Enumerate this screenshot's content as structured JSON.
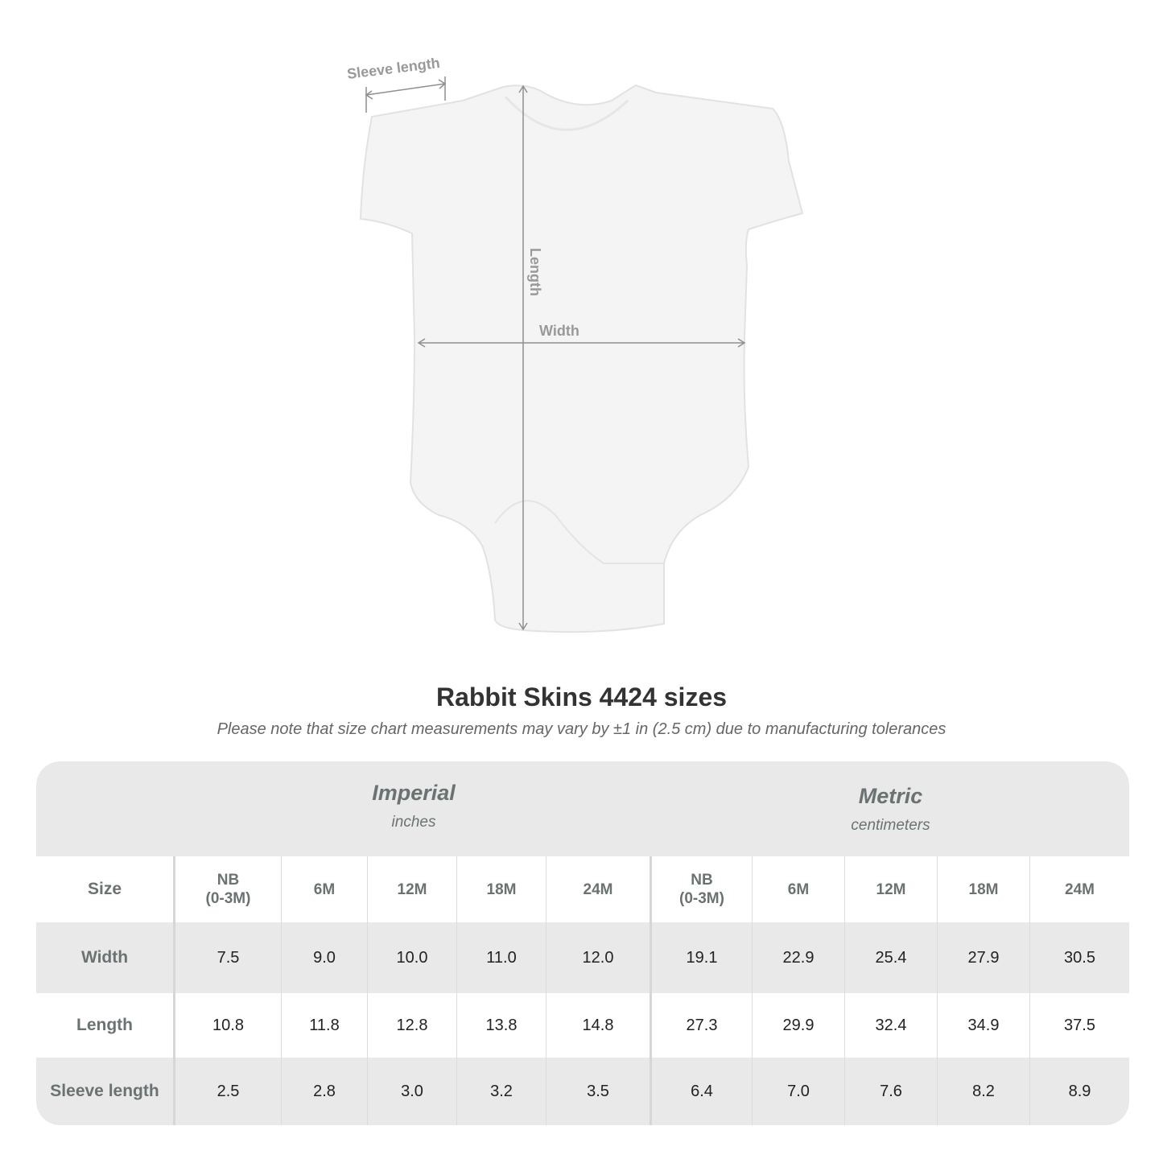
{
  "diagram": {
    "labels": {
      "sleeve": "Sleeve length",
      "length": "Length",
      "width": "Width"
    }
  },
  "title": "Rabbit Skins 4424 sizes",
  "subtitle": "Please note that size chart measurements may vary by ±1 in (2.5 cm) due to manufacturing tolerances",
  "table": {
    "imperial": {
      "title": "Imperial",
      "unit": "inches"
    },
    "metric": {
      "title": "Metric",
      "unit": "centimeters"
    },
    "size_label": "Size",
    "sizes_imperial": [
      "NB\n(0-3M)",
      "6M",
      "12M",
      "18M",
      "24M"
    ],
    "sizes_metric": [
      "NB\n(0-3M)",
      "6M",
      "12M",
      "18M",
      "24M"
    ],
    "rows": [
      {
        "label": "Width",
        "imperial": [
          "7.5",
          "9.0",
          "10.0",
          "11.0",
          "12.0"
        ],
        "metric": [
          "19.1",
          "22.9",
          "25.4",
          "27.9",
          "30.5"
        ]
      },
      {
        "label": "Length",
        "imperial": [
          "10.8",
          "11.8",
          "12.8",
          "13.8",
          "14.8"
        ],
        "metric": [
          "27.3",
          "29.9",
          "32.4",
          "34.9",
          "37.5"
        ]
      },
      {
        "label": "Sleeve length",
        "imperial": [
          "2.5",
          "2.8",
          "3.0",
          "3.2",
          "3.5"
        ],
        "metric": [
          "6.4",
          "7.0",
          "7.6",
          "8.2",
          "8.9"
        ]
      }
    ]
  }
}
